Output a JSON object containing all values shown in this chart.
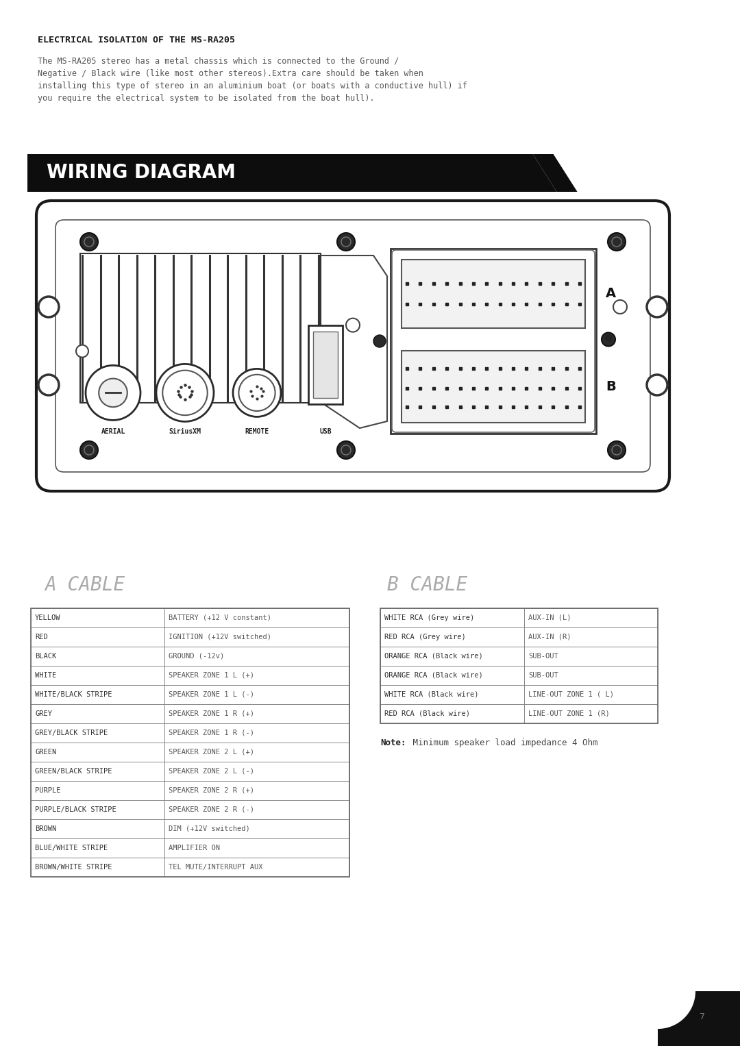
{
  "bg_color": "#ffffff",
  "title_section": "ELECTRICAL ISOLATION OF THE MS-RA205",
  "body_text": "The MS-RA205 stereo has a metal chassis which is connected to the Ground /\nNegative / Black wire (like most other stereos).Extra care should be taken when\ninstalling this type of stereo in an aluminium boat (or boats with a conductive hull) if\nyou require the electrical system to be isolated from the boat hull).",
  "wiring_diagram_label": "WIRING DIAGRAM",
  "cable_a_label": "A CABLE",
  "cable_b_label": "B CABLE",
  "cable_a_rows": [
    [
      "YELLOW",
      "BATTERY (+12 V constant)"
    ],
    [
      "RED",
      "IGNITION (+12V switched)"
    ],
    [
      "BLACK",
      "GROUND (-12v)"
    ],
    [
      "WHITE",
      "SPEAKER ZONE 1 L (+)"
    ],
    [
      "WHITE/BLACK STRIPE",
      "SPEAKER ZONE 1 L (-)"
    ],
    [
      "GREY",
      "SPEAKER ZONE 1 R (+)"
    ],
    [
      "GREY/BLACK STRIPE",
      "SPEAKER ZONE 1 R (-)"
    ],
    [
      "GREEN",
      "SPEAKER ZONE 2 L (+)"
    ],
    [
      "GREEN/BLACK STRIPE",
      "SPEAKER ZONE 2 L (-)"
    ],
    [
      "PURPLE",
      "SPEAKER ZONE 2 R (+)"
    ],
    [
      "PURPLE/BLACK STRIPE",
      "SPEAKER ZONE 2 R (-)"
    ],
    [
      "BROWN",
      "DIM (+12V switched)"
    ],
    [
      "BLUE/WHITE STRIPE",
      "AMPLIFIER ON"
    ],
    [
      "BROWN/WHITE STRIPE",
      "TEL MUTE/INTERRUPT AUX"
    ]
  ],
  "cable_b_rows": [
    [
      "WHITE RCA (Grey wire)",
      "AUX-IN (L)"
    ],
    [
      "RED RCA (Grey wire)",
      "AUX-IN (R)"
    ],
    [
      "ORANGE RCA (Black wire)",
      "SUB-OUT"
    ],
    [
      "ORANGE RCA (Black wire)",
      "SUB-OUT"
    ],
    [
      "WHITE RCA (Black wire)",
      "LINE-OUT ZONE 1 ( L)"
    ],
    [
      "RED RCA (Black wire)",
      "LINE-OUT ZONE 1 (R)"
    ]
  ],
  "note_bold": "Note:",
  "note_rest": " Minimum speaker load impedance 4 Ohm",
  "page_number": "7",
  "title_fontsize": 9.5,
  "body_fontsize": 8.5,
  "banner_fontsize": 20,
  "cable_header_fontsize": 20,
  "table_fontsize": 7.5,
  "note_fontsize": 9,
  "text_color": "#555555",
  "dark_color": "#1a1a1a",
  "table_border_color": "#888888",
  "table_text_color_left": "#333333",
  "table_text_color_right": "#555555"
}
